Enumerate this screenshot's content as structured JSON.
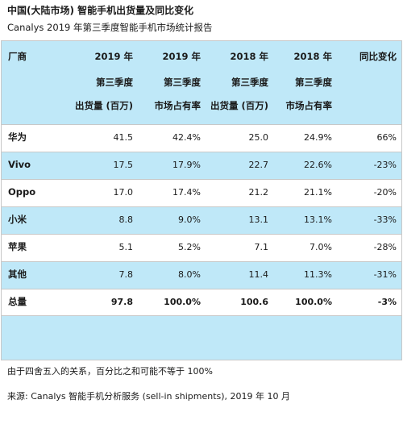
{
  "title": "中国(大陆市场) 智能手机出货量及同比变化",
  "subtitle": "Canalys 2019 年第三季度智能手机市场统计报告",
  "table": {
    "headers": [
      {
        "line1": "厂商",
        "line2": "",
        "line3": ""
      },
      {
        "line1": "2019 年",
        "line2": "第三季度",
        "line3": "出货量 (百万)"
      },
      {
        "line1": "2019 年",
        "line2": "第三季度",
        "line3": "市场占有率"
      },
      {
        "line1": "2018 年",
        "line2": "第三季度",
        "line3": "出货量 (百万)"
      },
      {
        "line1": "2018 年",
        "line2": "第三季度",
        "line3": "市场占有率"
      },
      {
        "line1": "同比变化",
        "line2": "",
        "line3": ""
      }
    ],
    "rows": [
      {
        "vendor": "华为",
        "ship_2019": "41.5",
        "share_2019": "42.4%",
        "ship_2018": "25.0",
        "share_2018": "24.9%",
        "yoy": "66%"
      },
      {
        "vendor": "Vivo",
        "ship_2019": "17.5",
        "share_2019": "17.9%",
        "ship_2018": "22.7",
        "share_2018": "22.6%",
        "yoy": "-23%"
      },
      {
        "vendor": "Oppo",
        "ship_2019": "17.0",
        "share_2019": "17.4%",
        "ship_2018": "21.2",
        "share_2018": "21.1%",
        "yoy": "-20%"
      },
      {
        "vendor": "小米",
        "ship_2019": "8.8",
        "share_2019": "9.0%",
        "ship_2018": "13.1",
        "share_2018": "13.1%",
        "yoy": "-33%"
      },
      {
        "vendor": "苹果",
        "ship_2019": "5.1",
        "share_2019": "5.2%",
        "ship_2018": "7.1",
        "share_2018": "7.0%",
        "yoy": "-28%"
      },
      {
        "vendor": "其他",
        "ship_2019": "7.8",
        "share_2019": "8.0%",
        "ship_2018": "11.4",
        "share_2018": "11.3%",
        "yoy": "-31%"
      },
      {
        "vendor": "总量",
        "ship_2019": "97.8",
        "share_2019": "100.0%",
        "ship_2018": "100.6",
        "share_2018": "100.0%",
        "yoy": "-3%"
      }
    ]
  },
  "note": "由于四舍五入的关系，百分比之和可能不等于 100%",
  "source": "来源: Canalys 智能手机分析服务 (sell-in shipments), 2019 年 10 月",
  "colors": {
    "band": "#bfe8f8",
    "border": "#c8c8c8"
  }
}
